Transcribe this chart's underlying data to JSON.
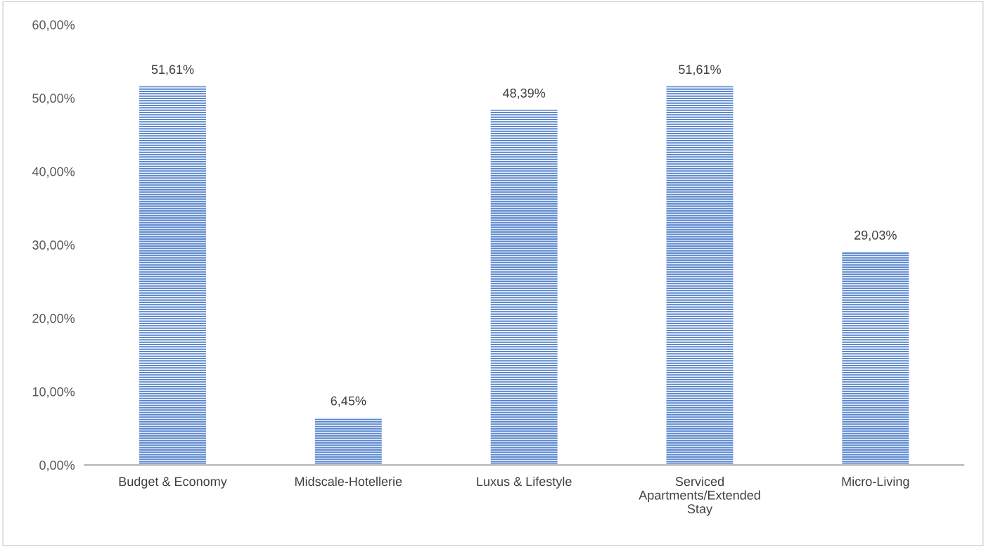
{
  "chart_data": {
    "type": "bar",
    "categories": [
      "Budget & Economy",
      "Midscale-Hotellerie",
      "Luxus & Lifestyle",
      "Serviced Apartments/Extended Stay",
      "Micro-Living"
    ],
    "values": [
      51.61,
      6.45,
      48.39,
      51.61,
      29.03
    ],
    "value_labels": [
      "51,61%",
      "6,45%",
      "48,39%",
      "51,61%",
      "29,03%"
    ],
    "color": "#5b87cf",
    "ylim": [
      0,
      60
    ],
    "yticks": [
      {
        "value": 0,
        "label": "0,00%"
      },
      {
        "value": 10,
        "label": "10,00%"
      },
      {
        "value": 20,
        "label": "20,00%"
      },
      {
        "value": 30,
        "label": "30,00%"
      },
      {
        "value": 40,
        "label": "40,00%"
      },
      {
        "value": 50,
        "label": "50,00%"
      },
      {
        "value": 60,
        "label": "60,00%"
      }
    ],
    "grid": false,
    "legend": false
  }
}
